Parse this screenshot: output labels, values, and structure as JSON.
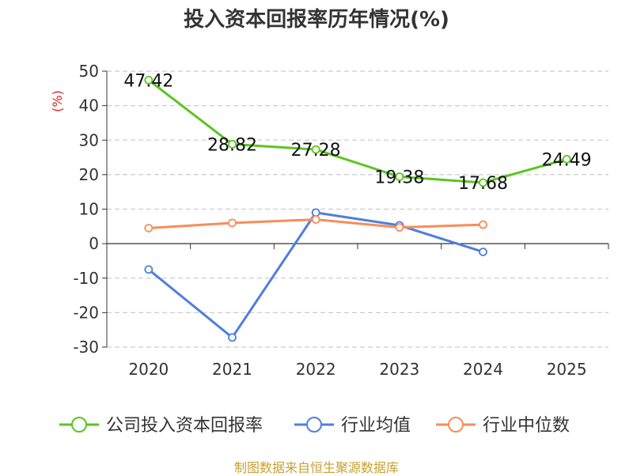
{
  "title": "投入资本回报率历年情况(%)",
  "source": "制图数据来自恒生聚源数据库",
  "chart_data": {
    "type": "line",
    "title": "投入资本回报率历年情况(%)",
    "ylabel": "(%)",
    "categories": [
      "2020",
      "2021",
      "2022",
      "2023",
      "2024",
      "2025"
    ],
    "ylim": [
      -30,
      50
    ],
    "yticks": [
      50,
      40,
      30,
      20,
      10,
      0,
      -10,
      -20,
      -30
    ],
    "grid": true,
    "legend_position": "bottom",
    "series": [
      {
        "name": "公司投入资本回报率",
        "color": "#5bc51f",
        "values": [
          47.42,
          28.82,
          27.28,
          19.38,
          17.68,
          24.49
        ],
        "labels": [
          "47.42",
          "28.82",
          "27.28",
          "19.38",
          "17.68",
          "24.49"
        ]
      },
      {
        "name": "行业均值",
        "color": "#4e7fdd",
        "values": [
          -7.5,
          -27.2,
          9.0,
          5.3,
          -2.4,
          null
        ]
      },
      {
        "name": "行业中位数",
        "color": "#f78d58",
        "values": [
          4.5,
          6.0,
          7.0,
          4.7,
          5.5,
          null
        ]
      }
    ]
  }
}
